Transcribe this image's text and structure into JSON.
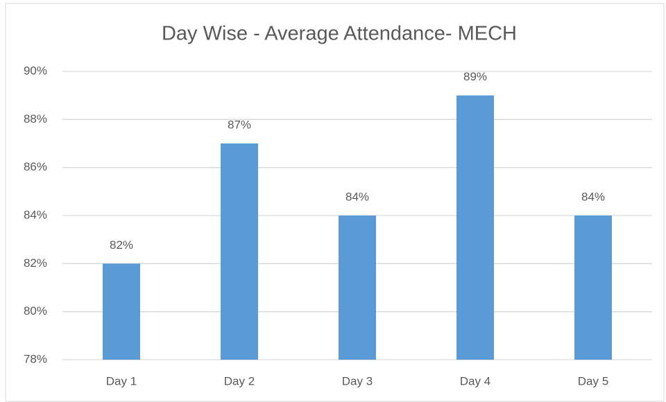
{
  "chart_data": {
    "type": "bar",
    "title": "Day Wise - Average Attendance- MECH",
    "categories": [
      "Day 1",
      "Day 2",
      "Day 3",
      "Day 4",
      "Day 5"
    ],
    "values": [
      82,
      87,
      84,
      89,
      84
    ],
    "value_labels": [
      "82%",
      "87%",
      "84%",
      "89%",
      "84%"
    ],
    "color": "#5b9bd5",
    "ylim": [
      78,
      90
    ],
    "yticks": [
      {
        "value": 78,
        "label": "78%"
      },
      {
        "value": 80,
        "label": "80%"
      },
      {
        "value": 82,
        "label": "82%"
      },
      {
        "value": 84,
        "label": "84%"
      },
      {
        "value": 86,
        "label": "86%"
      },
      {
        "value": 88,
        "label": "88%"
      },
      {
        "value": 90,
        "label": "90%"
      }
    ],
    "grid": true
  }
}
